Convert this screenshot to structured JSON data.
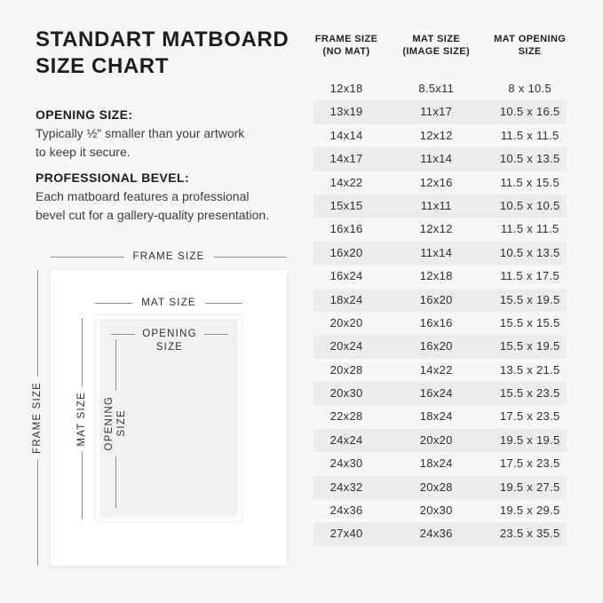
{
  "page": {
    "background": "#f7f7f5"
  },
  "left": {
    "title": "STANDART MATBOARD\nSIZE CHART",
    "opening_size": {
      "heading": "OPENING SIZE:",
      "body": "Typically ½\" smaller than your artwork\nto keep it secure."
    },
    "professional_bevel": {
      "heading": "PROFESSIONAL BEVEL:",
      "body": "Each matboard features a professional\nbevel cut for a gallery-quality presentation."
    }
  },
  "diagram": {
    "frame_size_label": "FRAME SIZE",
    "mat_size_label": "MAT SIZE",
    "opening_size_label": "OPENING\nSIZE"
  },
  "table": {
    "stripe_color": "#ececea",
    "headers": [
      {
        "line1": "FRAME SIZE",
        "line2": "(NO MAT)"
      },
      {
        "line1": "MAT SIZE",
        "line2": "(IMAGE SIZE)"
      },
      {
        "line1": "MAT OPENING",
        "line2": "SIZE"
      }
    ]
  },
  "chart_data": {
    "type": "table",
    "title": "STANDART MATBOARD SIZE CHART",
    "columns": [
      "FRAME SIZE (NO MAT)",
      "MAT SIZE (IMAGE SIZE)",
      "MAT OPENING SIZE"
    ],
    "rows": [
      [
        "12x18",
        "8.5x11",
        "8 x 10.5"
      ],
      [
        "13x19",
        "11x17",
        "10.5 x 16.5"
      ],
      [
        "14x14",
        "12x12",
        "11.5 x 11.5"
      ],
      [
        "14x17",
        "11x14",
        "10.5 x 13.5"
      ],
      [
        "14x22",
        "12x16",
        "11.5 x 15.5"
      ],
      [
        "15x15",
        "11x11",
        "10.5 x 10.5"
      ],
      [
        "16x16",
        "12x12",
        "11.5 x 11.5"
      ],
      [
        "16x20",
        "11x14",
        "10.5 x 13.5"
      ],
      [
        "16x24",
        "12x18",
        "11.5 x 17.5"
      ],
      [
        "18x24",
        "16x20",
        "15.5 x 19.5"
      ],
      [
        "20x20",
        "16x16",
        "15.5 x 15.5"
      ],
      [
        "20x24",
        "16x20",
        "15.5 x 19.5"
      ],
      [
        "20x28",
        "14x22",
        "13.5 x 21.5"
      ],
      [
        "20x30",
        "16x24",
        "15.5 x 23.5"
      ],
      [
        "22x28",
        "18x24",
        "17.5 x 23.5"
      ],
      [
        "24x24",
        "20x20",
        "19.5 x 19.5"
      ],
      [
        "24x30",
        "18x24",
        "17.5 x 23.5"
      ],
      [
        "24x32",
        "20x28",
        "19.5 x 27.5"
      ],
      [
        "24x36",
        "20x30",
        "19.5 x 29.5"
      ],
      [
        "27x40",
        "24x36",
        "23.5 x 35.5"
      ]
    ]
  }
}
